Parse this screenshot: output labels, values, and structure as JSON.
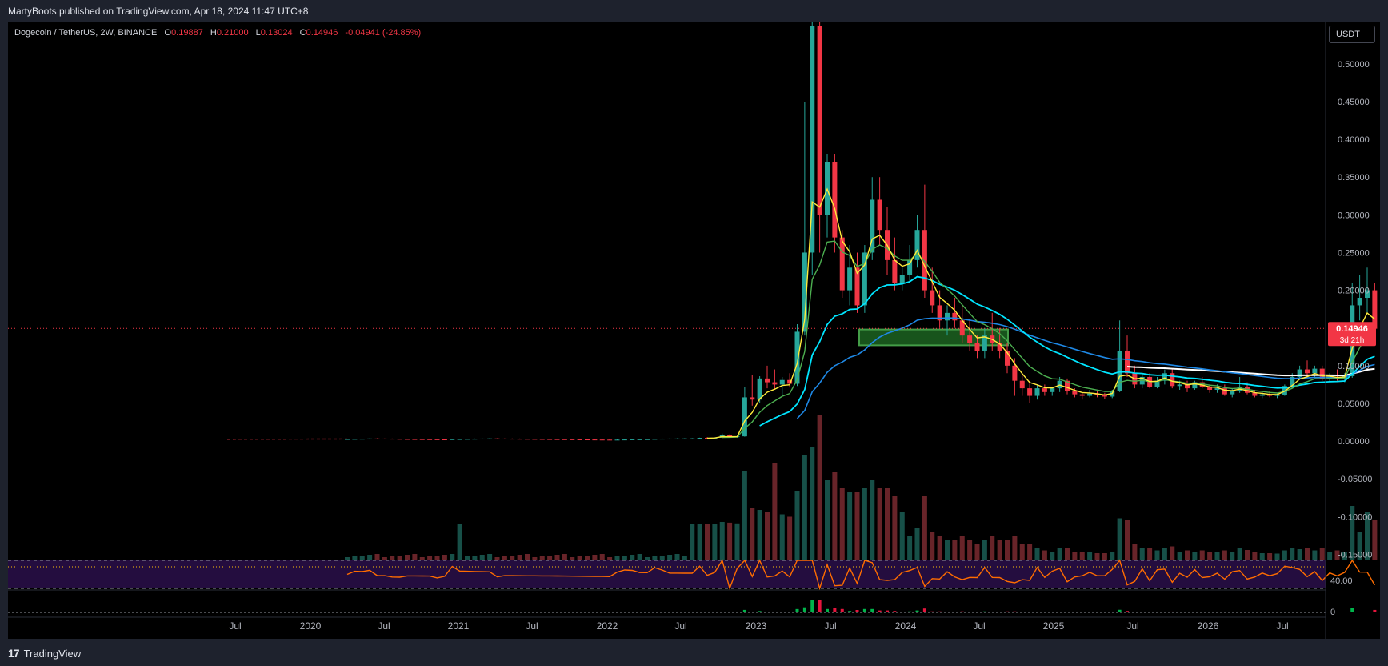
{
  "header": {
    "published_text": "MartyBoots published on TradingView.com, Apr 18, 2024 11:47 UTC+8"
  },
  "legend": {
    "symbol_text": "Dogecoin / TetherUS, 2W, BINANCE",
    "open_key": "O",
    "open": "0.19887",
    "high_key": "H",
    "high": "0.21000",
    "low_key": "L",
    "low": "0.13024",
    "close_key": "C",
    "close": "0.14946",
    "change": "-0.04941 (-24.85%)"
  },
  "currency_label": "USDT",
  "price_tag": {
    "price": "0.14946",
    "countdown": "3d 21h"
  },
  "footer": {
    "brand": "TradingView",
    "logo": "17"
  },
  "colors": {
    "up": "#26a69a",
    "down": "#f23645",
    "ema_fast": "#ffeb3b",
    "ema_mid": "#4caf50",
    "ema_slow": "#00e5ff",
    "ema_long": "#1e88e5",
    "sma_white": "#ffffff",
    "zone_fill": "#1b5e20",
    "zone_stroke": "#4caf50",
    "rsi": "#ff6d00",
    "rsi_band": "#2a0f4a"
  },
  "chart_data": {
    "type": "candlestick",
    "title": "Dogecoin / TetherUS, 2W, BINANCE",
    "y_axis": {
      "range": [
        -0.158,
        0.555
      ],
      "ticks": [
        "0.50000",
        "0.45000",
        "0.40000",
        "0.35000",
        "0.30000",
        "0.25000",
        "0.20000",
        "0.15000",
        "0.10000",
        "0.05000",
        "0.00000",
        "-0.05000",
        "-0.10000",
        "-0.15000"
      ]
    },
    "x_axis": {
      "labels": [
        "Jul",
        "2020",
        "Jul",
        "2021",
        "Jul",
        "2022",
        "Jul",
        "2023",
        "Jul",
        "2024",
        "Jul",
        "2025",
        "Jul",
        "2026",
        "Jul"
      ]
    },
    "current_price": 0.14946,
    "support_zone": {
      "low": 0.127,
      "high": 0.148,
      "from": "2023-10",
      "to": "2024-09"
    },
    "candles": [
      [
        0.0025,
        0.003,
        0.0022,
        0.0027
      ],
      [
        0.0027,
        0.0031,
        0.0024,
        0.0029
      ],
      [
        0.0029,
        0.0033,
        0.0026,
        0.0031
      ],
      [
        0.0031,
        0.0036,
        0.0029,
        0.0034
      ],
      [
        0.0034,
        0.0037,
        0.0031,
        0.0033
      ],
      [
        0.0033,
        0.0035,
        0.003,
        0.0032
      ],
      [
        0.0032,
        0.0034,
        0.0028,
        0.003
      ],
      [
        0.003,
        0.0032,
        0.0026,
        0.0028
      ],
      [
        0.0028,
        0.0031,
        0.0025,
        0.0027
      ],
      [
        0.0027,
        0.003,
        0.0024,
        0.0026
      ],
      [
        0.0026,
        0.0029,
        0.0023,
        0.0025
      ],
      [
        0.0025,
        0.0028,
        0.0022,
        0.0024
      ],
      [
        0.0024,
        0.0027,
        0.002,
        0.0022
      ],
      [
        0.0022,
        0.0026,
        0.0018,
        0.0021
      ],
      [
        0.0021,
        0.0028,
        0.0016,
        0.0025
      ],
      [
        0.0025,
        0.003,
        0.0022,
        0.0027
      ],
      [
        0.0027,
        0.0032,
        0.0024,
        0.0029
      ],
      [
        0.0029,
        0.0034,
        0.0026,
        0.0031
      ],
      [
        0.0031,
        0.0036,
        0.0028,
        0.0033
      ],
      [
        0.0033,
        0.0038,
        0.003,
        0.0035
      ],
      [
        0.0035,
        0.0037,
        0.0031,
        0.0033
      ],
      [
        0.0033,
        0.0036,
        0.003,
        0.0032
      ],
      [
        0.0032,
        0.0035,
        0.0029,
        0.0031
      ],
      [
        0.0031,
        0.0034,
        0.0028,
        0.003
      ],
      [
        0.003,
        0.0033,
        0.0027,
        0.0029
      ],
      [
        0.0029,
        0.0032,
        0.0026,
        0.0028
      ],
      [
        0.0028,
        0.0031,
        0.0025,
        0.0027
      ],
      [
        0.0027,
        0.003,
        0.0024,
        0.0026
      ],
      [
        0.0026,
        0.0029,
        0.0023,
        0.0025
      ],
      [
        0.0025,
        0.0028,
        0.0022,
        0.0024
      ],
      [
        0.0024,
        0.0027,
        0.0021,
        0.0023
      ],
      [
        0.0023,
        0.0026,
        0.002,
        0.0022
      ],
      [
        0.0022,
        0.0025,
        0.0019,
        0.0021
      ],
      [
        0.0021,
        0.0024,
        0.0018,
        0.002
      ],
      [
        0.002,
        0.0023,
        0.0017,
        0.0019
      ],
      [
        0.0019,
        0.0022,
        0.0016,
        0.0018
      ],
      [
        0.0018,
        0.0022,
        0.0016,
        0.0019
      ],
      [
        0.0019,
        0.0024,
        0.0017,
        0.0021
      ],
      [
        0.0021,
        0.0026,
        0.0019,
        0.0023
      ],
      [
        0.0023,
        0.0027,
        0.002,
        0.0024
      ],
      [
        0.0024,
        0.0028,
        0.0021,
        0.0025
      ],
      [
        0.0025,
        0.0031,
        0.0023,
        0.0029
      ],
      [
        0.0029,
        0.0034,
        0.0026,
        0.0032
      ],
      [
        0.0032,
        0.0036,
        0.0028,
        0.0033
      ],
      [
        0.0033,
        0.0037,
        0.003,
        0.0034
      ],
      [
        0.0034,
        0.0038,
        0.0031,
        0.0035
      ],
      [
        0.0035,
        0.0039,
        0.0032,
        0.0036
      ],
      [
        0.0036,
        0.0045,
        0.0034,
        0.0043
      ],
      [
        0.0043,
        0.0051,
        0.0038,
        0.0042
      ],
      [
        0.0042,
        0.0047,
        0.0038,
        0.0044
      ],
      [
        0.0044,
        0.01,
        0.004,
        0.0085
      ],
      [
        0.0085,
        0.009,
        0.0048,
        0.0055
      ],
      [
        0.0055,
        0.007,
        0.0046,
        0.0063
      ],
      [
        0.0063,
        0.072,
        0.0058,
        0.058
      ],
      [
        0.058,
        0.088,
        0.047,
        0.055
      ],
      [
        0.055,
        0.086,
        0.05,
        0.083
      ],
      [
        0.083,
        0.1,
        0.07,
        0.078
      ],
      [
        0.078,
        0.095,
        0.068,
        0.075
      ],
      [
        0.075,
        0.085,
        0.06,
        0.081
      ],
      [
        0.081,
        0.09,
        0.071,
        0.076
      ],
      [
        0.076,
        0.155,
        0.073,
        0.145
      ],
      [
        0.145,
        0.45,
        0.14,
        0.25
      ],
      [
        0.25,
        0.6,
        0.22,
        0.55
      ],
      [
        0.55,
        0.6,
        0.25,
        0.3
      ],
      [
        0.3,
        0.38,
        0.27,
        0.37
      ],
      [
        0.37,
        0.38,
        0.25,
        0.27
      ],
      [
        0.27,
        0.28,
        0.19,
        0.2
      ],
      [
        0.2,
        0.26,
        0.18,
        0.23
      ],
      [
        0.23,
        0.25,
        0.17,
        0.18
      ],
      [
        0.18,
        0.26,
        0.17,
        0.25
      ],
      [
        0.25,
        0.35,
        0.24,
        0.32
      ],
      [
        0.32,
        0.35,
        0.26,
        0.28
      ],
      [
        0.28,
        0.31,
        0.22,
        0.24
      ],
      [
        0.24,
        0.27,
        0.2,
        0.21
      ],
      [
        0.21,
        0.23,
        0.2,
        0.22
      ],
      [
        0.22,
        0.26,
        0.21,
        0.24
      ],
      [
        0.24,
        0.3,
        0.23,
        0.28
      ],
      [
        0.28,
        0.34,
        0.19,
        0.2
      ],
      [
        0.2,
        0.23,
        0.17,
        0.18
      ],
      [
        0.18,
        0.2,
        0.15,
        0.16
      ],
      [
        0.16,
        0.18,
        0.14,
        0.17
      ],
      [
        0.17,
        0.19,
        0.15,
        0.16
      ],
      [
        0.16,
        0.18,
        0.13,
        0.14
      ],
      [
        0.14,
        0.16,
        0.12,
        0.13
      ],
      [
        0.13,
        0.14,
        0.11,
        0.12
      ],
      [
        0.12,
        0.15,
        0.11,
        0.14
      ],
      [
        0.14,
        0.17,
        0.12,
        0.13
      ],
      [
        0.13,
        0.15,
        0.11,
        0.12
      ],
      [
        0.12,
        0.13,
        0.09,
        0.1
      ],
      [
        0.1,
        0.11,
        0.06,
        0.08
      ],
      [
        0.08,
        0.09,
        0.06,
        0.07
      ],
      [
        0.07,
        0.08,
        0.05,
        0.06
      ],
      [
        0.06,
        0.075,
        0.055,
        0.07
      ],
      [
        0.07,
        0.075,
        0.06,
        0.065
      ],
      [
        0.065,
        0.072,
        0.06,
        0.07
      ],
      [
        0.07,
        0.085,
        0.065,
        0.08
      ],
      [
        0.08,
        0.083,
        0.062,
        0.066
      ],
      [
        0.066,
        0.07,
        0.058,
        0.062
      ],
      [
        0.062,
        0.065,
        0.055,
        0.06
      ],
      [
        0.06,
        0.068,
        0.058,
        0.063
      ],
      [
        0.063,
        0.066,
        0.058,
        0.061
      ],
      [
        0.061,
        0.064,
        0.056,
        0.059
      ],
      [
        0.059,
        0.068,
        0.057,
        0.066
      ],
      [
        0.066,
        0.16,
        0.065,
        0.12
      ],
      [
        0.12,
        0.14,
        0.085,
        0.09
      ],
      [
        0.09,
        0.1,
        0.07,
        0.075
      ],
      [
        0.075,
        0.09,
        0.07,
        0.085
      ],
      [
        0.085,
        0.09,
        0.07,
        0.072
      ],
      [
        0.072,
        0.085,
        0.07,
        0.08
      ],
      [
        0.08,
        0.095,
        0.075,
        0.09
      ],
      [
        0.09,
        0.095,
        0.07,
        0.073
      ],
      [
        0.073,
        0.08,
        0.068,
        0.075
      ],
      [
        0.075,
        0.08,
        0.065,
        0.07
      ],
      [
        0.07,
        0.08,
        0.068,
        0.078
      ],
      [
        0.078,
        0.085,
        0.07,
        0.072
      ],
      [
        0.072,
        0.075,
        0.064,
        0.068
      ],
      [
        0.068,
        0.075,
        0.064,
        0.07
      ],
      [
        0.07,
        0.075,
        0.06,
        0.062
      ],
      [
        0.062,
        0.07,
        0.058,
        0.066
      ],
      [
        0.066,
        0.085,
        0.064,
        0.072
      ],
      [
        0.072,
        0.078,
        0.062,
        0.064
      ],
      [
        0.064,
        0.068,
        0.058,
        0.06
      ],
      [
        0.06,
        0.065,
        0.057,
        0.062
      ],
      [
        0.062,
        0.066,
        0.058,
        0.06
      ],
      [
        0.06,
        0.064,
        0.057,
        0.061
      ],
      [
        0.061,
        0.075,
        0.06,
        0.073
      ],
      [
        0.073,
        0.09,
        0.07,
        0.085
      ],
      [
        0.085,
        0.1,
        0.082,
        0.095
      ],
      [
        0.095,
        0.107,
        0.085,
        0.09
      ],
      [
        0.09,
        0.1,
        0.085,
        0.096
      ],
      [
        0.096,
        0.1,
        0.08,
        0.082
      ],
      [
        0.082,
        0.09,
        0.078,
        0.085
      ],
      [
        0.085,
        0.095,
        0.08,
        0.082
      ],
      [
        0.082,
        0.09,
        0.078,
        0.086
      ],
      [
        0.086,
        0.21,
        0.084,
        0.18
      ],
      [
        0.18,
        0.22,
        0.16,
        0.19
      ],
      [
        0.19,
        0.23,
        0.17,
        0.2
      ],
      [
        0.2,
        0.21,
        0.13,
        0.149
      ]
    ]
  },
  "indicators": {
    "rsi_label": "40.00",
    "macd_label": "0"
  }
}
